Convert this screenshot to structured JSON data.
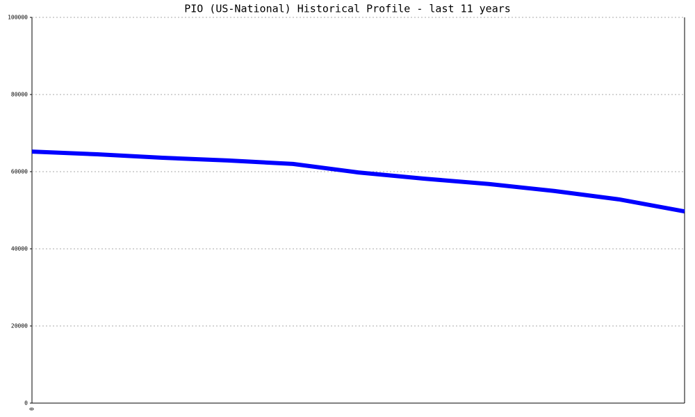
{
  "chart_data": {
    "type": "line",
    "title": "PIO (US-National) Historical Profile - last 11 years",
    "categories": [
      "0",
      null,
      null,
      null,
      null,
      null,
      null,
      null,
      null,
      null,
      null
    ],
    "series": [
      {
        "color": "#0000ff",
        "values": [
          65200,
          64500,
          63600,
          62900,
          62000,
          59800,
          58200,
          56800,
          55000,
          52800,
          49700
        ]
      }
    ],
    "ylim": [
      0,
      100000
    ],
    "yticks": [
      0,
      20000,
      40000,
      60000,
      80000,
      100000
    ],
    "grid": true
  }
}
